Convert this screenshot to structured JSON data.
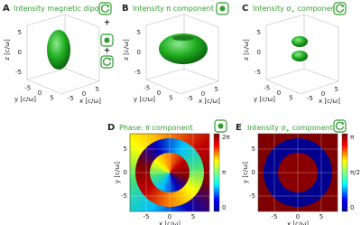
{
  "panels": [
    {
      "label": "A",
      "title": [
        "Intensity magnetic dipole"
      ],
      "z_label": "z [c/ω]",
      "y_label": "y [c/ω]",
      "x_label": "x [c/ω]",
      "z_ticks": [
        5,
        0,
        -5
      ],
      "y_ticks": [
        -5,
        0,
        5
      ],
      "x_ticks": [
        -5,
        0,
        5
      ],
      "icon_separators": [
        "+",
        "+"
      ]
    },
    {
      "label": "B",
      "title": [
        "Intensity π component"
      ],
      "z_label": "z [c/ω]",
      "y_label": "y [c/ω]",
      "x_label": "x [c/ω]",
      "z_ticks": [
        5,
        0,
        -5
      ],
      "y_ticks": [
        -5,
        0,
        5
      ],
      "x_ticks": [
        -5,
        0,
        5
      ]
    },
    {
      "label": "C",
      "title": [
        "Intensity σ",
        "+",
        " component"
      ],
      "z_label": "z [c/ω]",
      "y_label": "y [c/ω]",
      "x_label": "x [c/ω]",
      "z_ticks": [
        5,
        0,
        -5
      ],
      "y_ticks": [
        -5,
        0,
        5
      ],
      "x_ticks": [
        -5,
        0,
        5
      ]
    },
    {
      "label": "D",
      "title": [
        "Phase: π component"
      ],
      "y_label": "y [c/ω]",
      "x_label": "x [c/ω]",
      "y_ticks": [
        5,
        0,
        -5
      ],
      "x_ticks": [
        -5,
        0,
        5
      ],
      "colorbar_ticks": [
        "2π",
        "π",
        0
      ]
    },
    {
      "label": "E",
      "title": [
        "Intensity σ",
        "+",
        " component"
      ],
      "y_label": "y [c/ω]",
      "x_label": "x [c/ω]",
      "y_ticks": [
        5,
        0,
        -5
      ],
      "x_ticks": [
        -5,
        0,
        5
      ],
      "colorbar_ticks": [
        "π",
        "π/2",
        0
      ]
    }
  ]
}
